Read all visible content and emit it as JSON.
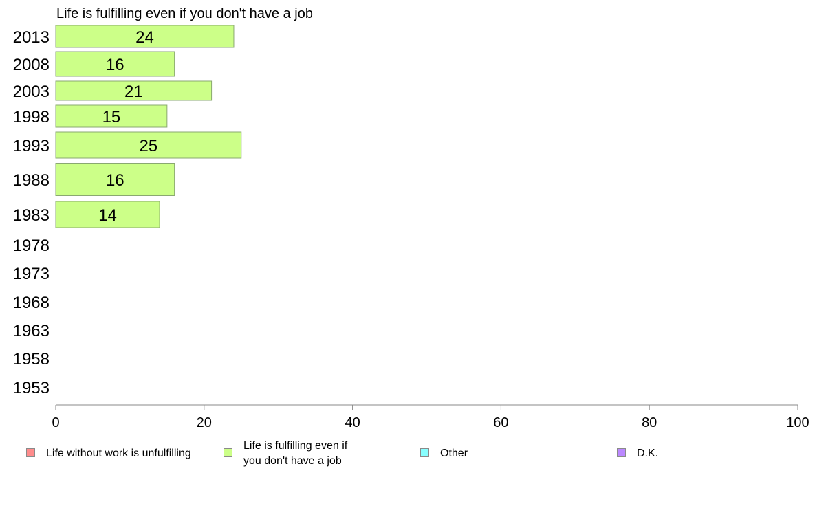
{
  "chart_data": {
    "type": "bar",
    "orientation": "horizontal",
    "title": "Life is fulfilling even if you don't have a job",
    "categories": [
      "2013",
      "2008",
      "2003",
      "1998",
      "1993",
      "1988",
      "1983",
      "1978",
      "1973",
      "1968",
      "1963",
      "1958",
      "1953"
    ],
    "series": [
      {
        "name": "Life is fulfilling even if you don't have a job",
        "color": "#ccff88",
        "values": [
          24,
          16,
          21,
          15,
          25,
          16,
          14,
          null,
          null,
          null,
          null,
          null,
          null
        ]
      }
    ],
    "xlim": [
      0,
      100
    ],
    "xticks": [
      "0",
      "20",
      "40",
      "60",
      "80",
      "100"
    ],
    "grid": false,
    "legend_position": "bottom"
  },
  "legend": {
    "items": [
      {
        "label": "Life without work is unfulfilling",
        "color": "#ff8c8c"
      },
      {
        "label": "Life is fulfilling even if\nyou don't have a job",
        "color": "#ccff88"
      },
      {
        "label": "Other",
        "color": "#88ffff"
      },
      {
        "label": "D.K.",
        "color": "#bb88ff"
      }
    ]
  }
}
